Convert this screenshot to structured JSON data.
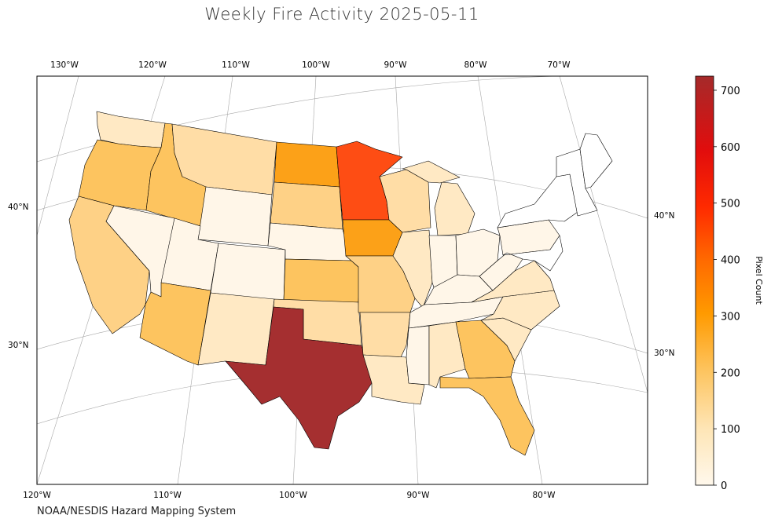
{
  "title": "Weekly Fire Activity 2025-05-11",
  "credit": "NOAA/NESDIS Hazard Mapping System",
  "top_lon_labels": [
    "130°W",
    "120°W",
    "110°W",
    "100°W",
    "90°W",
    "80°W",
    "70°W"
  ],
  "bottom_lon_labels": [
    "120°W",
    "110°W",
    "100°W",
    "90°W",
    "80°W"
  ],
  "left_lat_labels": [
    "40°N",
    "30°N"
  ],
  "right_lat_labels": [
    "40°N",
    "30°N"
  ],
  "colorbar": {
    "label": "Pixel Count",
    "min": 0,
    "max": 725,
    "ticks": [
      "0",
      "100",
      "200",
      "300",
      "400",
      "500",
      "600",
      "700"
    ],
    "tick_values": [
      0,
      100,
      200,
      300,
      400,
      500,
      600,
      700
    ],
    "colors": [
      "#fff8ec",
      "#fee5b5",
      "#fed080",
      "#fdb44b",
      "#ff9a00",
      "#ff6a00",
      "#ff2a00",
      "#e10d0d",
      "#a52a2a"
    ]
  },
  "colors": {
    "none": "#ffffff",
    "very_low": "#fff6e8",
    "low": "#ffe9c4",
    "mid_low": "#ffdda6",
    "mid": "#fed186",
    "mid_high": "#fdc45f",
    "high": "#fca118",
    "very_high": "#fe4d14",
    "extreme": "#a52f30"
  },
  "state_categories": {
    "WA": "low",
    "OR": "mid_high",
    "CA": "mid",
    "ID": "mid_high",
    "MT": "mid_low",
    "NV": "very_low",
    "UT": "very_low",
    "WY": "very_low",
    "CO": "very_low",
    "AZ": "mid_high",
    "NM": "low",
    "ND": "high",
    "SD": "mid",
    "NE": "very_low",
    "KS": "mid_high",
    "OK": "mid_low",
    "TX": "extreme",
    "MN": "very_high",
    "IA": "high",
    "MO": "mid",
    "AR": "mid_low",
    "LA": "low",
    "WI": "mid_low",
    "IL": "low",
    "MI": "low",
    "IN": "very_low",
    "OH": "very_low",
    "KY": "very_low",
    "TN": "very_low",
    "MS": "very_low",
    "AL": "low",
    "GA": "mid_high",
    "FL": "mid_high",
    "SC": "low",
    "NC": "low",
    "VA": "low",
    "WV": "very_low",
    "PA": "very_low",
    "NY": "none",
    "NE_NEW_ENGLAND": "none",
    "ME": "none"
  }
}
